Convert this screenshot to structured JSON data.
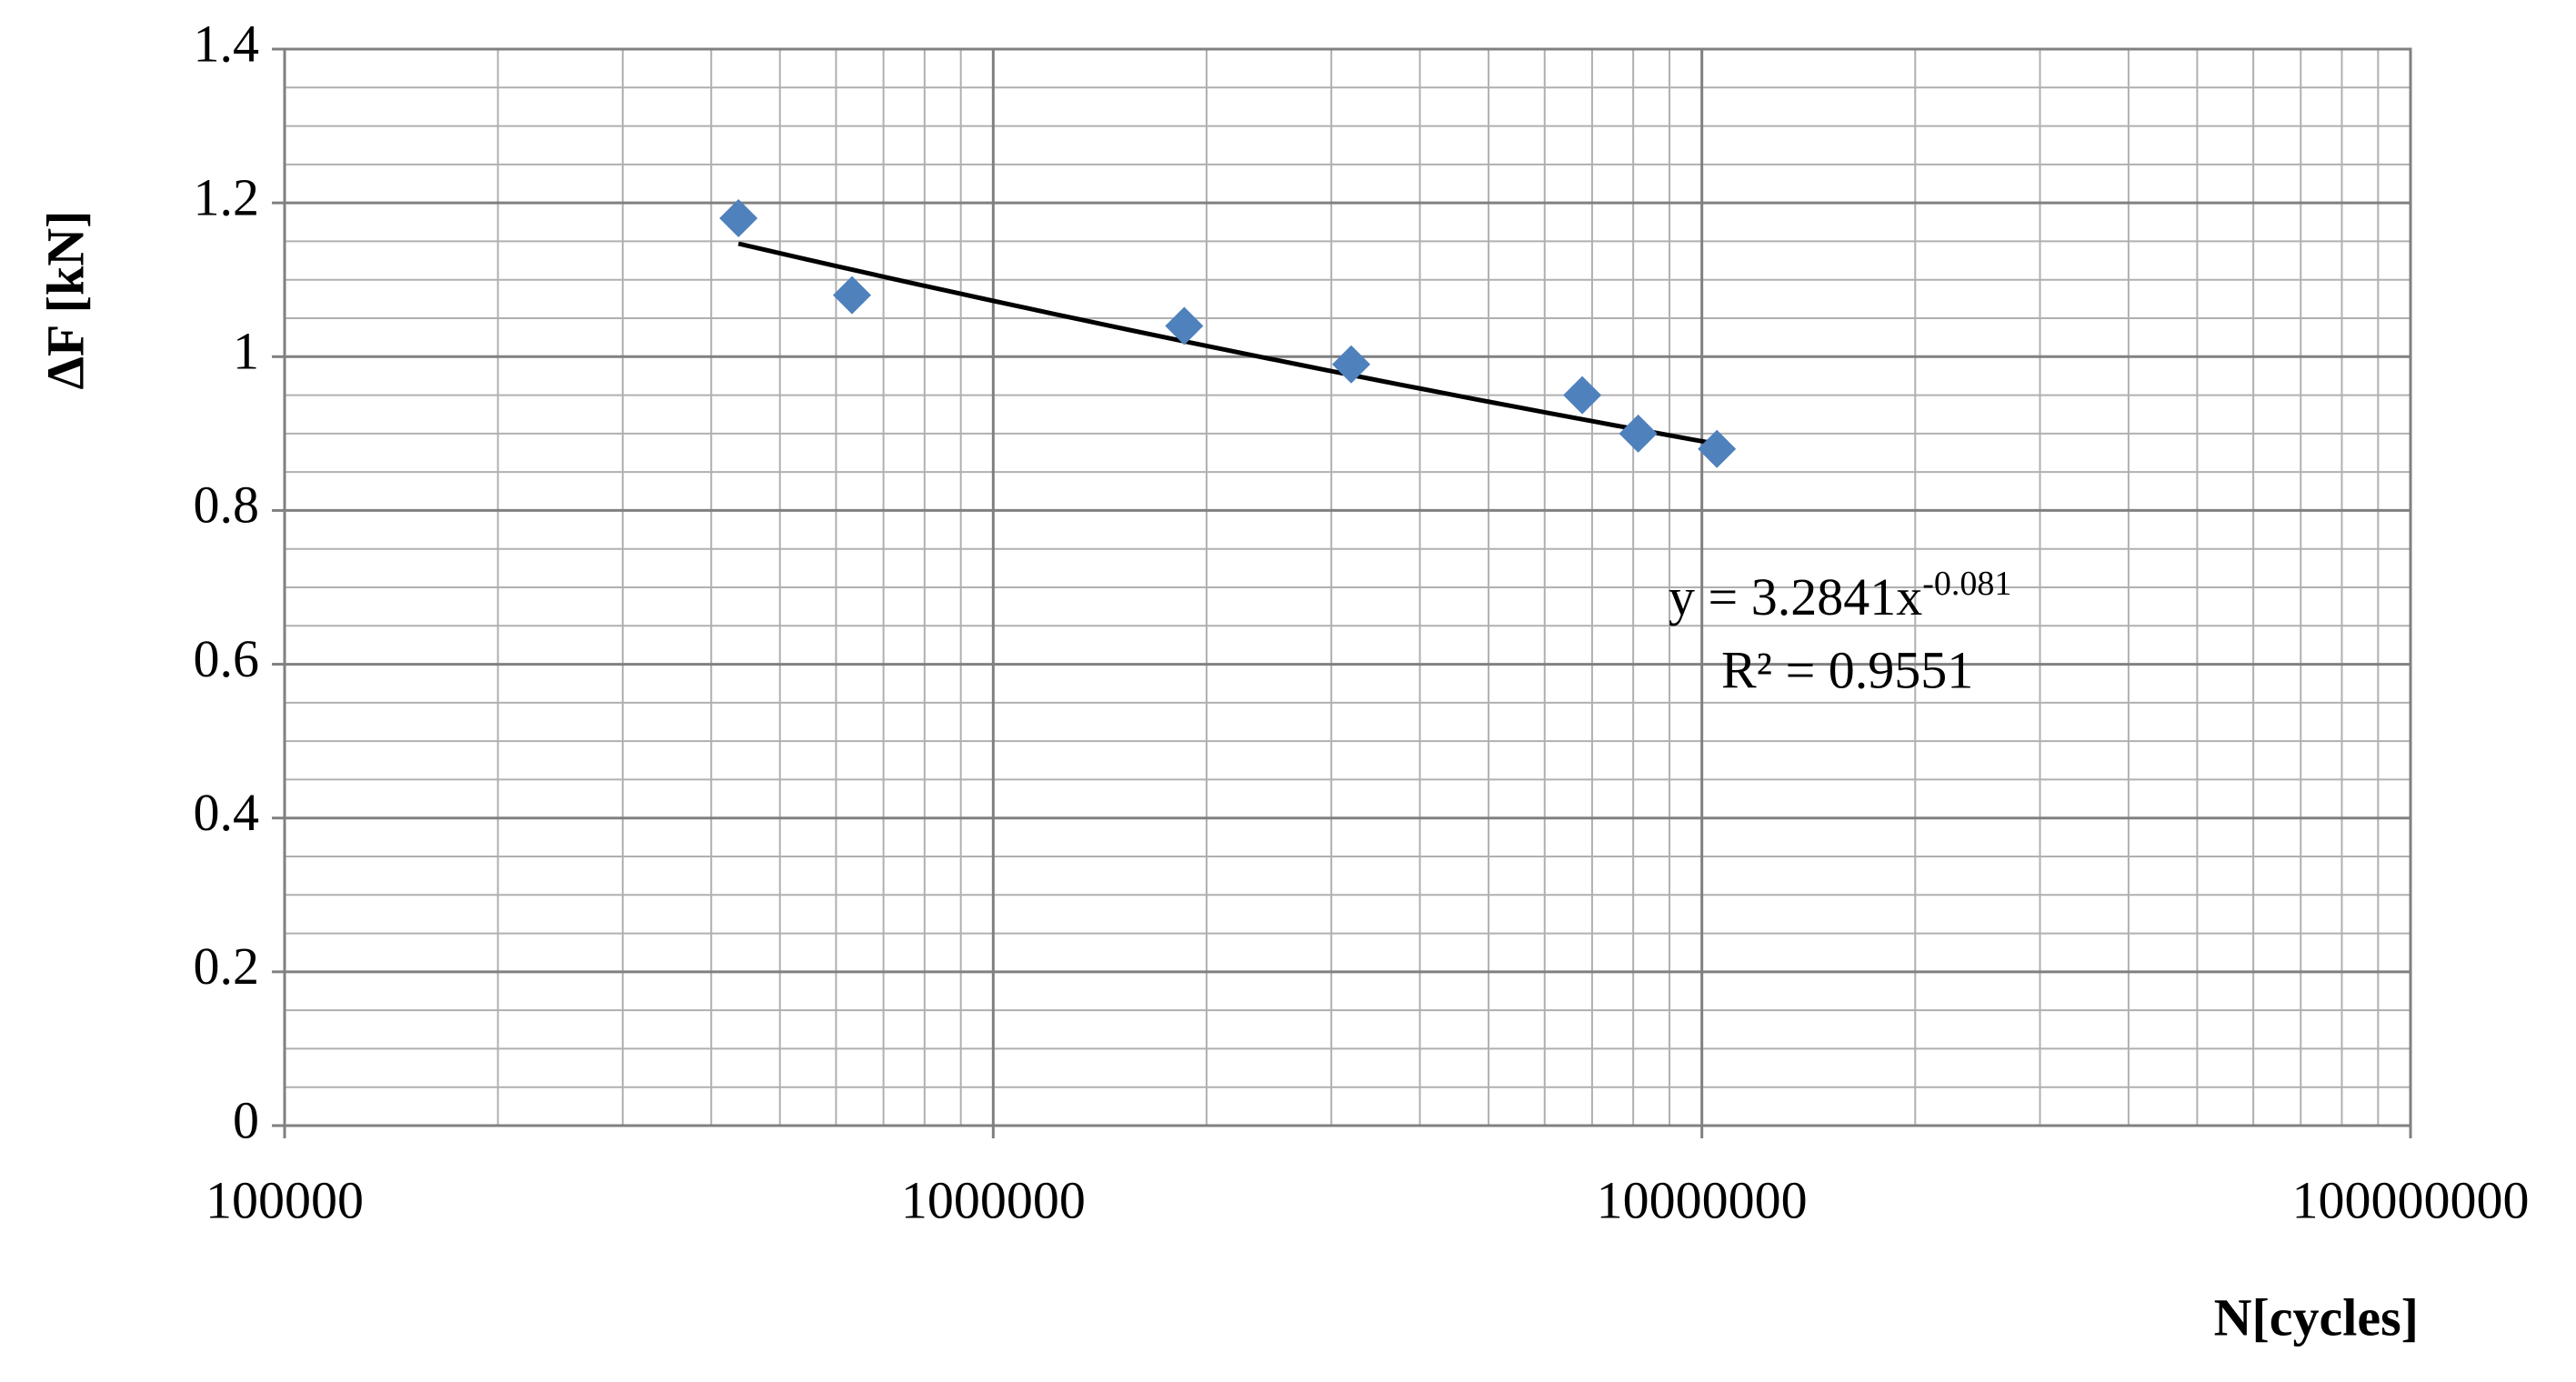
{
  "chart_data": {
    "type": "scatter",
    "x_label": "N[cycles]",
    "y_label": "ΔF [kN]",
    "x": [
      437000,
      632000,
      1860000,
      3200000,
      6780000,
      8130000,
      10500000
    ],
    "series": [
      {
        "color": "#4f81bd",
        "values": [
          1.18,
          1.08,
          1.04,
          0.99,
          0.95,
          0.9,
          0.88
        ]
      }
    ],
    "xlim": [
      100000,
      100000000
    ],
    "xticks": [
      100000,
      1000000,
      10000000,
      100000000
    ],
    "x_log": true,
    "ylim": [
      0,
      1.4
    ],
    "yticks": [
      0,
      0.2,
      0.4,
      0.6,
      0.8,
      1,
      1.2,
      1.4
    ],
    "grid": true,
    "minor_grid": true,
    "trendline": {
      "a": 3.2841,
      "b": -0.081,
      "color": "#000000",
      "equation": "y = 3.2841x",
      "r2_label": "R² = 0.9551"
    }
  }
}
